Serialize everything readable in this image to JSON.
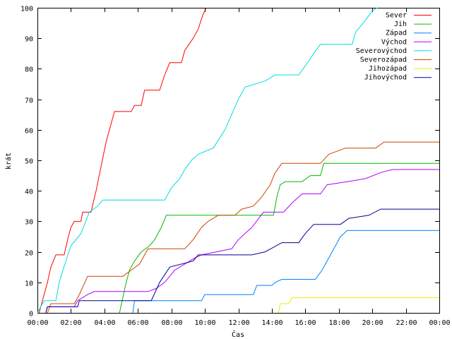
{
  "chart_data": {
    "type": "line",
    "title": "",
    "xlabel": "Čas",
    "ylabel": "krát",
    "xlim": [
      0,
      24
    ],
    "ylim": [
      0,
      100
    ],
    "x_ticks": [
      {
        "value": 0,
        "label": "00:00"
      },
      {
        "value": 2,
        "label": "02:00"
      },
      {
        "value": 4,
        "label": "04:00"
      },
      {
        "value": 6,
        "label": "06:00"
      },
      {
        "value": 8,
        "label": "08:00"
      },
      {
        "value": 10,
        "label": "10:00"
      },
      {
        "value": 12,
        "label": "12:00"
      },
      {
        "value": 14,
        "label": "14:00"
      },
      {
        "value": 16,
        "label": "16:00"
      },
      {
        "value": 18,
        "label": "18:00"
      },
      {
        "value": 20,
        "label": "20:00"
      },
      {
        "value": 22,
        "label": "22:00"
      },
      {
        "value": 24,
        "label": "00:00"
      }
    ],
    "y_ticks": [
      0,
      10,
      20,
      30,
      40,
      50,
      60,
      70,
      80,
      90,
      100
    ],
    "grid": false,
    "legend_position": "top-right",
    "series": [
      {
        "name": "Sever",
        "color": "#ff0000",
        "points": [
          [
            0.1,
            0
          ],
          [
            0.3,
            4
          ],
          [
            0.6,
            10
          ],
          [
            0.8,
            15
          ],
          [
            1.1,
            19
          ],
          [
            1.6,
            19
          ],
          [
            1.8,
            24
          ],
          [
            2.0,
            28
          ],
          [
            2.2,
            30
          ],
          [
            2.6,
            30
          ],
          [
            2.7,
            33
          ],
          [
            3.2,
            33
          ],
          [
            3.5,
            40
          ],
          [
            3.8,
            48
          ],
          [
            4.1,
            56
          ],
          [
            4.4,
            62
          ],
          [
            4.6,
            66
          ],
          [
            5.6,
            66
          ],
          [
            5.8,
            68
          ],
          [
            6.2,
            68
          ],
          [
            6.4,
            73
          ],
          [
            7.3,
            73
          ],
          [
            7.6,
            78
          ],
          [
            7.9,
            82
          ],
          [
            8.6,
            82
          ],
          [
            8.8,
            86
          ],
          [
            9.3,
            90
          ],
          [
            9.6,
            93
          ],
          [
            9.9,
            98
          ],
          [
            10.1,
            100
          ]
        ]
      },
      {
        "name": "Jih",
        "color": "#00bb00",
        "points": [
          [
            4.9,
            0
          ],
          [
            5.1,
            5
          ],
          [
            5.3,
            10
          ],
          [
            5.5,
            14
          ],
          [
            5.8,
            17
          ],
          [
            6.2,
            20
          ],
          [
            6.7,
            22
          ],
          [
            7.0,
            24
          ],
          [
            7.4,
            28
          ],
          [
            7.7,
            32
          ],
          [
            10.0,
            32
          ],
          [
            13.0,
            32
          ],
          [
            14.1,
            32
          ],
          [
            14.3,
            38
          ],
          [
            14.5,
            42
          ],
          [
            14.8,
            43
          ],
          [
            15.8,
            43
          ],
          [
            16.3,
            45
          ],
          [
            16.9,
            45
          ],
          [
            17.1,
            49
          ],
          [
            24,
            49
          ]
        ]
      },
      {
        "name": "Západ",
        "color": "#0080ff",
        "points": [
          [
            5.7,
            0
          ],
          [
            5.8,
            4
          ],
          [
            9.8,
            4
          ],
          [
            10.0,
            6
          ],
          [
            12.9,
            6
          ],
          [
            13.1,
            9
          ],
          [
            14.0,
            9
          ],
          [
            14.2,
            10
          ],
          [
            14.6,
            11
          ],
          [
            16.6,
            11
          ],
          [
            17.0,
            14
          ],
          [
            17.4,
            18
          ],
          [
            17.8,
            22
          ],
          [
            18.1,
            25
          ],
          [
            18.5,
            27
          ],
          [
            24,
            27
          ]
        ]
      },
      {
        "name": "Východ",
        "color": "#b000ff",
        "points": [
          [
            0.5,
            0
          ],
          [
            0.6,
            2
          ],
          [
            2.2,
            2
          ],
          [
            2.4,
            4
          ],
          [
            3.0,
            6
          ],
          [
            3.4,
            7
          ],
          [
            6.6,
            7
          ],
          [
            7.1,
            8
          ],
          [
            7.6,
            10
          ],
          [
            8.2,
            14
          ],
          [
            8.8,
            16
          ],
          [
            9.4,
            18
          ],
          [
            9.8,
            19
          ],
          [
            11.6,
            21
          ],
          [
            12.0,
            24
          ],
          [
            12.8,
            28
          ],
          [
            13.5,
            33
          ],
          [
            14.7,
            33
          ],
          [
            15.2,
            36
          ],
          [
            15.8,
            39
          ],
          [
            16.9,
            39
          ],
          [
            17.3,
            42
          ],
          [
            18.5,
            43
          ],
          [
            19.6,
            44
          ],
          [
            20.5,
            46
          ],
          [
            21.2,
            47
          ],
          [
            24,
            47
          ]
        ]
      },
      {
        "name": "Severovýchod",
        "color": "#00dddd",
        "points": [
          [
            0,
            0
          ],
          [
            0.2,
            2
          ],
          [
            0.4,
            4
          ],
          [
            1.1,
            4
          ],
          [
            1.3,
            10
          ],
          [
            1.7,
            17
          ],
          [
            2.0,
            22
          ],
          [
            2.6,
            26
          ],
          [
            3.1,
            33
          ],
          [
            3.6,
            35
          ],
          [
            3.9,
            37
          ],
          [
            7.6,
            37
          ],
          [
            8.0,
            41
          ],
          [
            8.5,
            44
          ],
          [
            8.8,
            47
          ],
          [
            9.2,
            50
          ],
          [
            9.6,
            52
          ],
          [
            10.5,
            54
          ],
          [
            11.2,
            60
          ],
          [
            11.6,
            65
          ],
          [
            12.0,
            70
          ],
          [
            12.4,
            74
          ],
          [
            13.6,
            76
          ],
          [
            14.2,
            78
          ],
          [
            15.6,
            78
          ],
          [
            16.0,
            81
          ],
          [
            16.5,
            85
          ],
          [
            16.9,
            88
          ],
          [
            18.8,
            88
          ],
          [
            19.0,
            92
          ],
          [
            19.6,
            96
          ],
          [
            20.0,
            99
          ],
          [
            20.3,
            100
          ]
        ]
      },
      {
        "name": "Severozápad",
        "color": "#cc4400",
        "points": [
          [
            0.6,
            0
          ],
          [
            0.8,
            3
          ],
          [
            2.2,
            3
          ],
          [
            2.5,
            6
          ],
          [
            3.0,
            12
          ],
          [
            5.1,
            12
          ],
          [
            5.6,
            14
          ],
          [
            6.1,
            16
          ],
          [
            6.6,
            21
          ],
          [
            8.8,
            21
          ],
          [
            9.3,
            24
          ],
          [
            9.8,
            28
          ],
          [
            10.2,
            30
          ],
          [
            10.8,
            32
          ],
          [
            11.8,
            32
          ],
          [
            12.2,
            34
          ],
          [
            12.9,
            35
          ],
          [
            13.4,
            38
          ],
          [
            13.9,
            42
          ],
          [
            14.2,
            46
          ],
          [
            14.6,
            49
          ],
          [
            16.9,
            49
          ],
          [
            17.4,
            52
          ],
          [
            18.4,
            54
          ],
          [
            20.2,
            54
          ],
          [
            20.7,
            56
          ],
          [
            24,
            56
          ]
        ]
      },
      {
        "name": "Jihozápad",
        "color": "#eeee00",
        "points": [
          [
            14.4,
            0
          ],
          [
            14.5,
            3
          ],
          [
            15.0,
            3
          ],
          [
            15.2,
            5
          ],
          [
            24,
            5
          ]
        ]
      },
      {
        "name": "Jihovýchod",
        "color": "#000099",
        "points": [
          [
            0.5,
            0
          ],
          [
            0.6,
            2
          ],
          [
            2.4,
            2
          ],
          [
            2.5,
            4
          ],
          [
            6.8,
            4
          ],
          [
            7.3,
            10
          ],
          [
            7.9,
            15
          ],
          [
            9.3,
            17
          ],
          [
            9.6,
            19
          ],
          [
            12.8,
            19
          ],
          [
            13.6,
            20
          ],
          [
            14.6,
            23
          ],
          [
            15.6,
            23
          ],
          [
            16.0,
            26
          ],
          [
            16.5,
            29
          ],
          [
            18.1,
            29
          ],
          [
            18.6,
            31
          ],
          [
            19.8,
            32
          ],
          [
            20.5,
            34
          ],
          [
            24,
            34
          ]
        ]
      }
    ]
  }
}
